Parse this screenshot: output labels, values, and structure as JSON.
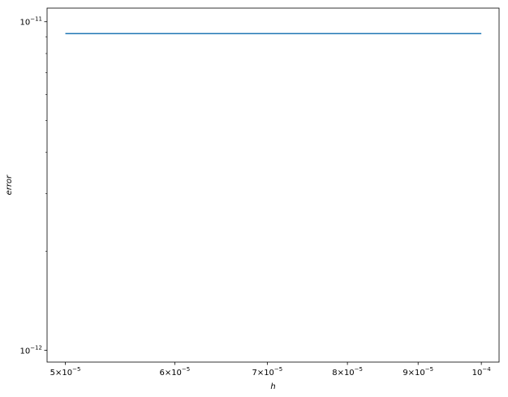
{
  "chart_data": {
    "type": "line",
    "title": "",
    "xlabel": "h",
    "ylabel": "error",
    "xscale": "log",
    "yscale": "log",
    "xlim": [
      4.85e-05,
      0.000103
    ],
    "ylim": [
      9.2e-13,
      1.1e-11
    ],
    "grid": false,
    "x_ticks": [
      {
        "value": 5e-05,
        "mantissa": "5×10",
        "exp": "−5"
      },
      {
        "value": 6e-05,
        "mantissa": "6×10",
        "exp": "−5"
      },
      {
        "value": 7e-05,
        "mantissa": "7×10",
        "exp": "−5"
      },
      {
        "value": 8e-05,
        "mantissa": "8×10",
        "exp": "−5"
      },
      {
        "value": 9e-05,
        "mantissa": "9×10",
        "exp": "−5"
      },
      {
        "value": 0.0001,
        "mantissa": "10",
        "exp": "−4"
      }
    ],
    "y_major_ticks": [
      {
        "value": 1e-12,
        "mantissa": "10",
        "exp": "−12"
      },
      {
        "value": 1e-11,
        "mantissa": "10",
        "exp": "−11"
      }
    ],
    "y_minor_ticks": [
      2e-12,
      3e-12,
      4e-12,
      5e-12,
      6e-12,
      7e-12,
      8e-12,
      9e-12
    ],
    "series": [
      {
        "color": "#1f77b4",
        "x": [
          5e-05,
          0.0001
        ],
        "y": [
          9.2e-12,
          9.2e-12
        ]
      }
    ]
  }
}
